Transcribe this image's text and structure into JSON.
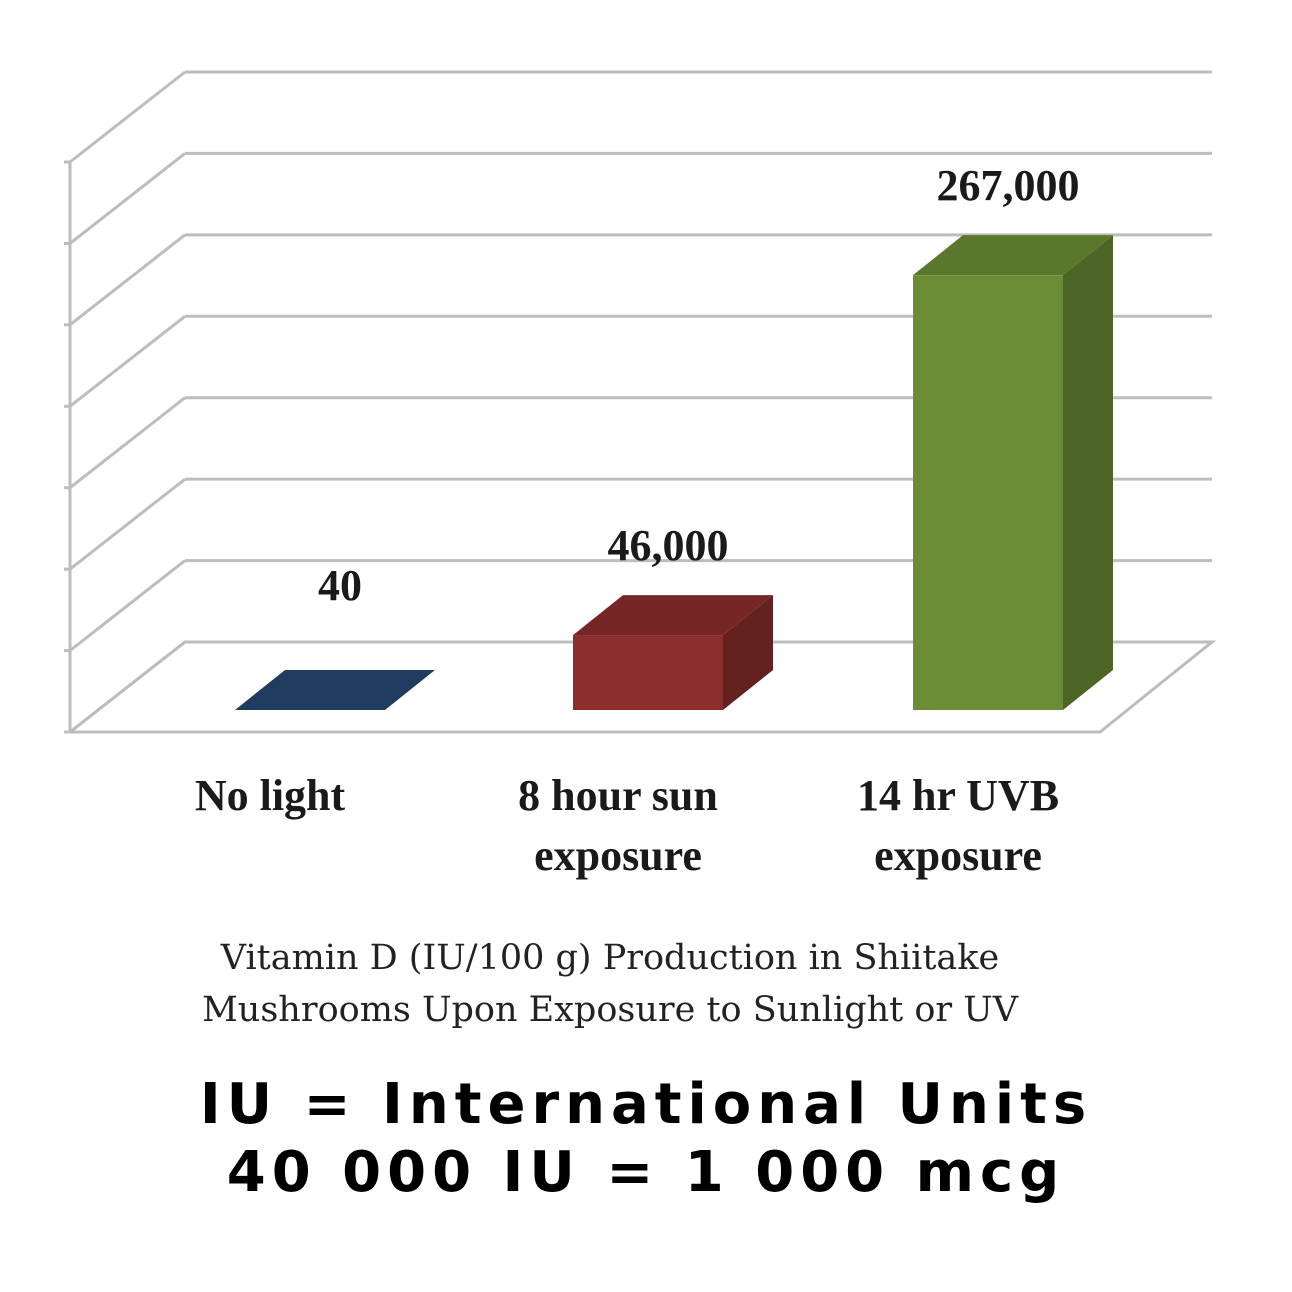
{
  "chart_data": {
    "type": "bar",
    "categories": [
      "No light",
      "8 hour sun exposure",
      "14 hr UVB exposure"
    ],
    "category_lines": [
      [
        "No light"
      ],
      [
        "8 hour sun",
        "exposure"
      ],
      [
        "14 hr UVB",
        "exposure"
      ]
    ],
    "values": [
      40,
      46000,
      267000
    ],
    "value_labels": [
      "40",
      "46,000",
      "267,000"
    ],
    "colors": [
      "#1f3c5e",
      "#8b2e2c",
      "#6b8c34"
    ],
    "ylim": [
      0,
      350000
    ],
    "grid": true,
    "title_lines": [
      "Vitamin D (IU/100 g) Production in Shiitake",
      "Mushrooms Upon Exposure to Sunlight or UV"
    ]
  },
  "notes": {
    "line1": "IU = International Units",
    "line2": "40 000 IU = 1 000 mcg"
  }
}
